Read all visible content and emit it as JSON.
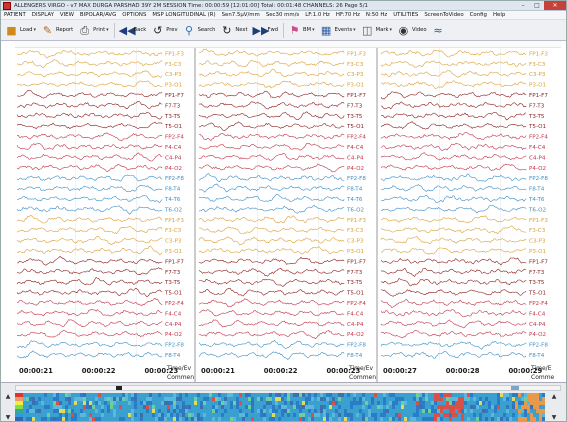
{
  "window": {
    "title": "ALLENGERS VIRGO - v7  MAX  DURGA PARSHAD  39Y 2M  SESSION    Time: 00:00:59 [12:01:00]    Total: 00:01:48    CHANNELS: 26         Page 5/1",
    "controls": [
      "–",
      "□",
      "✕"
    ]
  },
  "menu": [
    "PATIENT",
    "DISPLAY",
    "VIEW",
    "BIPOLAR/AVG",
    "OPTIONS",
    "MSP LONGITUDINAL (R)",
    "Sen7.5µV/mm",
    "Sec30 mm/s",
    "LF:1.0 Hz",
    "HF:70 Hz",
    "N:50 Hz",
    "UTILITIES",
    "ScreenToVideo",
    "Config",
    "Help"
  ],
  "toolbar": {
    "load": "Load",
    "report": "Report",
    "print": "Print",
    "back": "Back",
    "prev": "Prev",
    "search": "Search",
    "next": "Next",
    "fwd": "Fwd",
    "bm": "BM",
    "events": "Events",
    "mark": "Mark",
    "video": "Video"
  },
  "icons": {
    "load": "folder-open-icon",
    "report": "report-icon",
    "print": "printer-icon",
    "back": "double-left-arrow-icon",
    "prev": "prev-page-icon",
    "search": "magnifier-icon",
    "next": "next-page-icon",
    "fwd": "double-right-arrow-icon",
    "bm": "bookmark-icon",
    "events": "calendar-icon",
    "mark": "mark-icon",
    "video": "camera-icon",
    "wave": "waveform-icon"
  },
  "montage": {
    "channels": [
      "FP1-F3",
      "F3-C3",
      "C3-P3",
      "P3-O1",
      "FP1-F7",
      "F7-T3",
      "T3-T5",
      "T5-O1",
      "FP2-F4",
      "F4-C4",
      "C4-P4",
      "P4-O2",
      "FP2-F8",
      "F8-T4",
      "T4-T6",
      "T6-O2",
      "FP1-F3",
      "F3-C3",
      "C3-P3",
      "P3-O1",
      "FP1-F7",
      "F7-T3",
      "T3-T5",
      "T5-O1",
      "FP2-F4",
      "F4-C4",
      "C4-P4",
      "P4-O2",
      "FP2-F8",
      "F8-T4"
    ],
    "colors": [
      "#d9a23a",
      "#d9a23a",
      "#d9a23a",
      "#d9a23a",
      "#8c1f1f",
      "#8c1f1f",
      "#8c1f1f",
      "#8c1f1f",
      "#c2364a",
      "#c2364a",
      "#c2364a",
      "#c2364a",
      "#3b8fc7",
      "#3b8fc7",
      "#3b8fc7",
      "#3b8fc7",
      "#d9a23a",
      "#d9a23a",
      "#d9a23a",
      "#d9a23a",
      "#8c1f1f",
      "#8c1f1f",
      "#8c1f1f",
      "#8c1f1f",
      "#c2364a",
      "#c2364a",
      "#c2364a",
      "#c2364a",
      "#3b8fc7",
      "#3b8fc7"
    ]
  },
  "pages": [
    {
      "times": [
        "00:00:21",
        "00:00:22",
        "00:00:23"
      ],
      "label1": "Time/Ev",
      "label2": "Commen"
    },
    {
      "times": [
        "00:00:21",
        "00:00:22",
        "00:00:23"
      ],
      "label1": "Time/Ev",
      "label2": "Commen"
    },
    {
      "times": [
        "00:00:27",
        "00:00:28",
        "00:00:29"
      ],
      "label1": "Time/E",
      "label2": "Comme"
    }
  ],
  "footer": {
    "arrow_up": "▲",
    "arrow_down": "▼",
    "scroll_left": "◀",
    "scroll_right": "▶"
  },
  "colors": {
    "grid": "#c8c8c8",
    "label": "#e07a2e",
    "time": "#1a1a1a",
    "trend_bg": "#3aa0d0"
  }
}
